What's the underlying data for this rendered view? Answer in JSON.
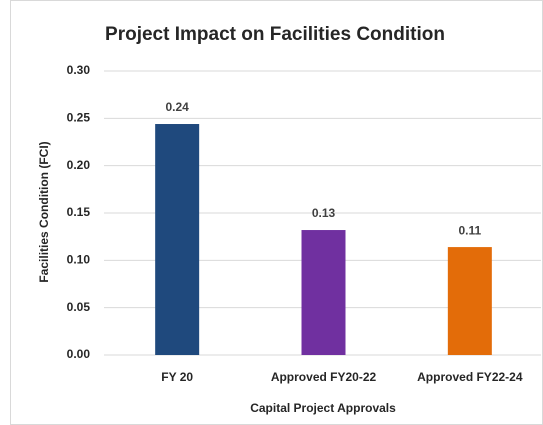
{
  "chart_data": {
    "type": "bar",
    "title": "Project Impact on Facilities Condition",
    "xlabel": "Capital Project Approvals",
    "ylabel": "Facilities Condition (FCI)",
    "categories": [
      "FY 20",
      "Approved FY20-22",
      "Approved FY22-24"
    ],
    "values": [
      0.244,
      0.132,
      0.114
    ],
    "value_labels": [
      "0.24",
      "0.13",
      "0.11"
    ],
    "colors": [
      "#1f497d",
      "#7030a0",
      "#e36c09"
    ],
    "ylim": [
      0,
      0.3
    ],
    "yticks": [
      {
        "value": 0,
        "label": "0.00"
      },
      {
        "value": 0.05,
        "label": "0.05"
      },
      {
        "value": 0.1,
        "label": "0.10"
      },
      {
        "value": 0.15,
        "label": "0.15"
      },
      {
        "value": 0.2,
        "label": "0.20"
      },
      {
        "value": 0.25,
        "label": "0.25"
      },
      {
        "value": 0.3,
        "label": "0.30"
      }
    ],
    "grid": true
  }
}
